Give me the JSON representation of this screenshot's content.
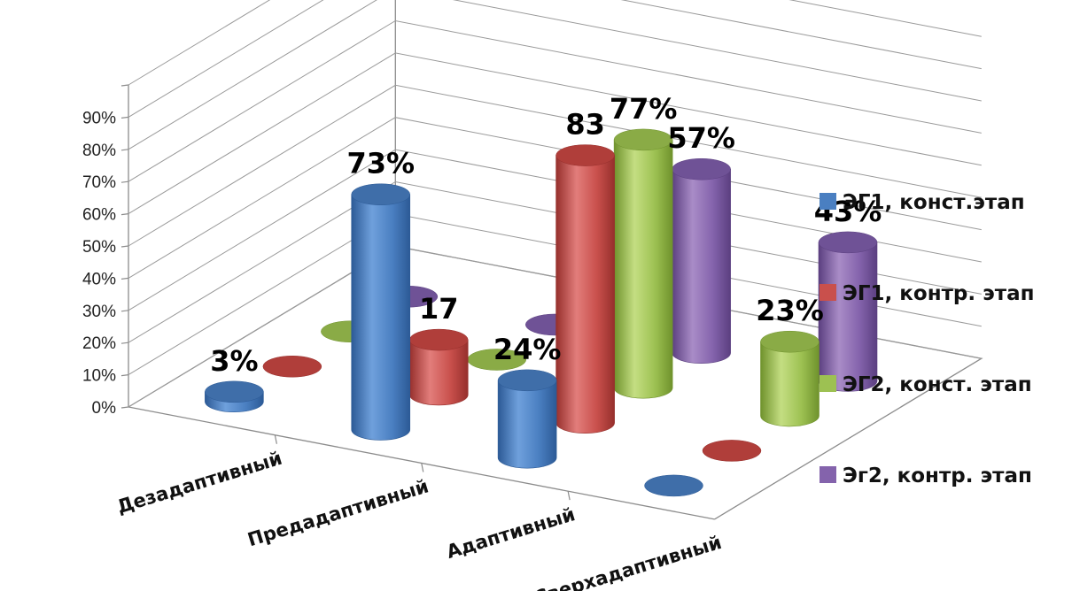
{
  "chart_data": {
    "type": "bar",
    "categories": [
      "Дезадаптивный",
      "Предадаптивный",
      "Адаптивный",
      "Сверхадаптивный"
    ],
    "series": [
      {
        "name": "ЭГ1, конст.этап",
        "values": [
          3,
          73,
          24,
          0
        ],
        "labels": [
          "3%",
          "73%",
          "24%",
          ""
        ]
      },
      {
        "name": "ЭГ1, контр. этап",
        "values": [
          0,
          17,
          83,
          0
        ],
        "labels": [
          "",
          "17",
          "83",
          ""
        ]
      },
      {
        "name": "ЭГ2, конст. этап",
        "values": [
          0,
          0,
          77,
          23
        ],
        "labels": [
          "",
          "",
          "77%",
          "23%"
        ]
      },
      {
        "name": "Эг2, контр. этап",
        "values": [
          0,
          0,
          57,
          43
        ],
        "labels": [
          "",
          "",
          "57%",
          "43%"
        ]
      }
    ],
    "yticks": [
      "0%",
      "10%",
      "20%",
      "30%",
      "40%",
      "50%",
      "60%",
      "70%",
      "80%",
      "90%"
    ],
    "ylim": [
      0,
      100
    ],
    "grid": true,
    "legend": "right",
    "style": "3d-cylinder",
    "colors": {
      "s0": {
        "light": "#6fa0dc",
        "main": "#4a7fc1",
        "dark": "#2c5a96",
        "top": "#3f6ea9"
      },
      "s1": {
        "light": "#e27d7b",
        "main": "#c9504c",
        "dark": "#962f2c",
        "top": "#b03e3a"
      },
      "s2": {
        "light": "#c4de82",
        "main": "#9dc152",
        "dark": "#6f922c",
        "top": "#8aab46"
      },
      "s3": {
        "light": "#a98cc7",
        "main": "#8463ac",
        "dark": "#5b3f80",
        "top": "#6f5296"
      }
    }
  }
}
